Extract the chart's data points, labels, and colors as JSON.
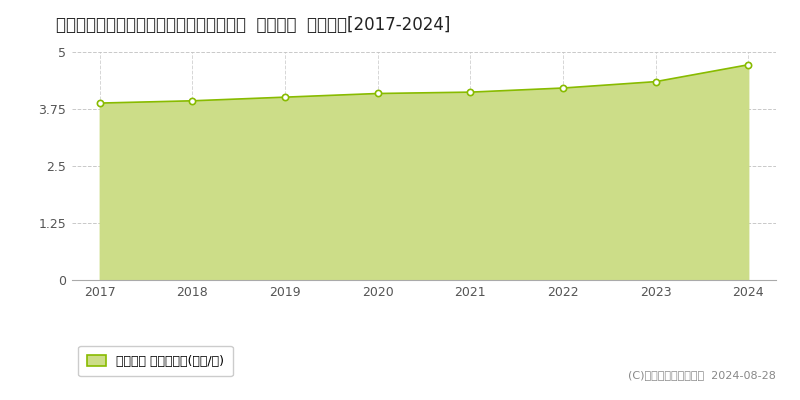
{
  "title": "鳥取県米子市西福原７丁目１０６２番１外  地価公示  地価推移[2017-2024]",
  "years": [
    2017,
    2018,
    2019,
    2020,
    2021,
    2022,
    2023,
    2024
  ],
  "values": [
    3.88,
    3.93,
    4.01,
    4.09,
    4.12,
    4.21,
    4.35,
    4.72
  ],
  "ylim": [
    0,
    5
  ],
  "yticks": [
    0,
    1.25,
    2.5,
    3.75,
    5
  ],
  "ytick_labels": [
    "0",
    "1.25",
    "2.5",
    "3.75",
    "5"
  ],
  "line_color": "#88bb00",
  "fill_color": "#ccdd88",
  "marker_face_color": "#ffffff",
  "marker_edge_color": "#88bb00",
  "bg_color": "#ffffff",
  "grid_color": "#bbbbbb",
  "legend_label": "地価公示 平均坪単価(万円/坪)",
  "copyright_text": "(C)土地価格ドットコム  2024-08-28",
  "title_fontsize": 12,
  "tick_fontsize": 9,
  "legend_fontsize": 9,
  "copyright_fontsize": 8
}
